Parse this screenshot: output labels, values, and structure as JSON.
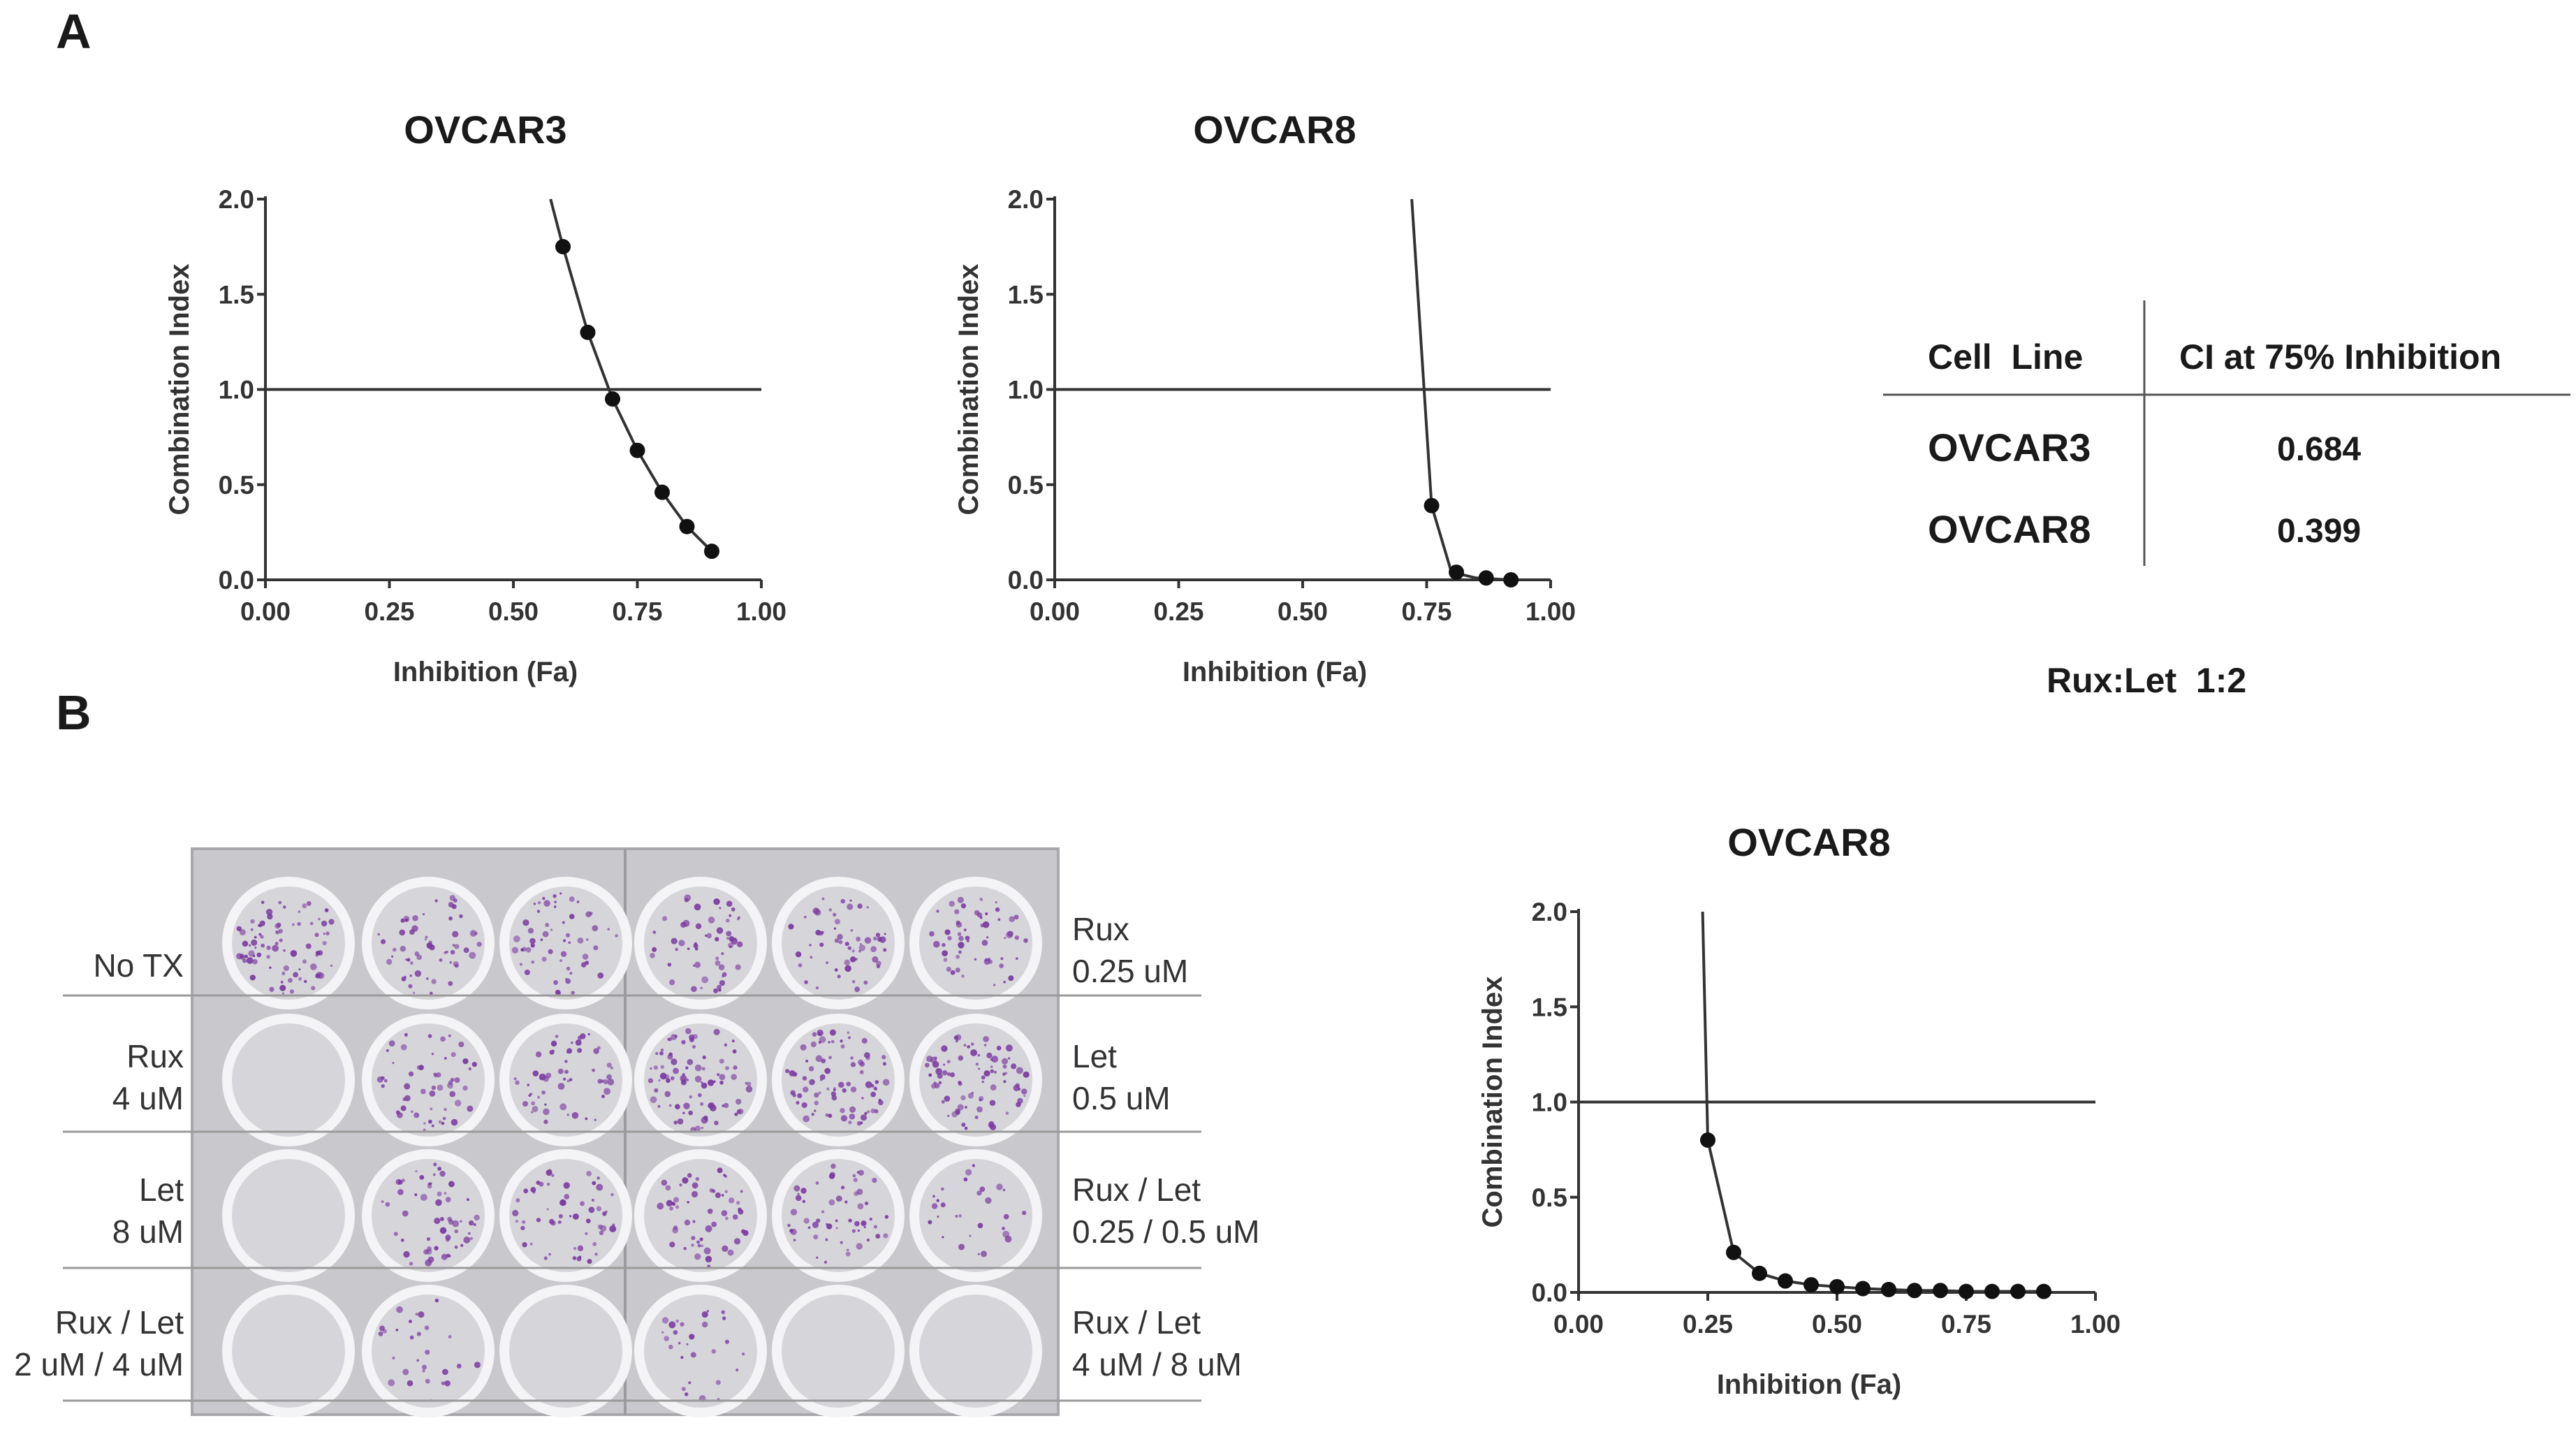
{
  "panels": {
    "a_label": "A",
    "b_label": "B"
  },
  "colors": {
    "line": "#333333",
    "marker": "#111111",
    "axis": "#333333",
    "plate_bg": "#c9c8cc",
    "well_bg": "#d6d5da",
    "well_rim": "#f4f4f6",
    "colony": "#7a3aa0"
  },
  "chart_data": [
    {
      "id": "a_ovcar3",
      "type": "line",
      "title": "OVCAR3",
      "xlabel": "Inhibition (Fa)",
      "ylabel": "Combination Index",
      "xlim": [
        0,
        1
      ],
      "ylim": [
        0,
        2
      ],
      "xticks": [
        "0.00",
        "0.25",
        "0.50",
        "0.75",
        "1.00"
      ],
      "yticks": [
        "0.0",
        "0.5",
        "1.0",
        "1.5",
        "2.0"
      ],
      "reference_line_y": 1.0,
      "curve": {
        "x": [
          0.575,
          0.6,
          0.65,
          0.7,
          0.75,
          0.8,
          0.85,
          0.9
        ],
        "y": [
          2.0,
          1.75,
          1.3,
          0.95,
          0.68,
          0.46,
          0.28,
          0.15
        ]
      },
      "points": {
        "x": [
          0.6,
          0.65,
          0.7,
          0.75,
          0.8,
          0.85,
          0.9
        ],
        "y": [
          1.75,
          1.3,
          0.95,
          0.68,
          0.46,
          0.28,
          0.15
        ]
      }
    },
    {
      "id": "a_ovcar8",
      "type": "line",
      "title": "OVCAR8",
      "xlabel": "Inhibition (Fa)",
      "ylabel": "Combination Index",
      "xlim": [
        0,
        1
      ],
      "ylim": [
        0,
        2
      ],
      "xticks": [
        "0.00",
        "0.25",
        "0.50",
        "0.75",
        "1.00"
      ],
      "yticks": [
        "0.0",
        "0.5",
        "1.0",
        "1.5",
        "2.0"
      ],
      "reference_line_y": 1.0,
      "curve": {
        "x": [
          0.72,
          0.76,
          0.8,
          0.85,
          0.92
        ],
        "y": [
          2.0,
          0.39,
          0.04,
          0.01,
          0.0
        ]
      },
      "points": {
        "x": [
          0.76,
          0.81,
          0.87,
          0.92
        ],
        "y": [
          0.39,
          0.04,
          0.01,
          0.0
        ]
      }
    },
    {
      "id": "b_ovcar8",
      "type": "line",
      "title": "OVCAR8",
      "xlabel": "Inhibition (Fa)",
      "ylabel": "Combination Index",
      "xlim": [
        0,
        1
      ],
      "ylim": [
        0,
        2
      ],
      "xticks": [
        "0.00",
        "0.25",
        "0.50",
        "0.75",
        "1.00"
      ],
      "yticks": [
        "0.0",
        "0.5",
        "1.0",
        "1.5",
        "2.0"
      ],
      "reference_line_y": 1.0,
      "curve": {
        "x": [
          0.24,
          0.25,
          0.3,
          0.35,
          0.4,
          0.45,
          0.5,
          0.55,
          0.6,
          0.65,
          0.7,
          0.75,
          0.8,
          0.85,
          0.9
        ],
        "y": [
          2.0,
          0.8,
          0.21,
          0.1,
          0.06,
          0.04,
          0.03,
          0.02,
          0.015,
          0.01,
          0.01,
          0.005,
          0.005,
          0.005,
          0.005
        ]
      },
      "points": {
        "x": [
          0.25,
          0.3,
          0.35,
          0.4,
          0.45,
          0.5,
          0.55,
          0.6,
          0.65,
          0.7,
          0.75,
          0.8,
          0.85,
          0.9
        ],
        "y": [
          0.8,
          0.21,
          0.1,
          0.06,
          0.04,
          0.03,
          0.02,
          0.015,
          0.01,
          0.01,
          0.005,
          0.005,
          0.005,
          0.005
        ]
      }
    }
  ],
  "ci_table": {
    "headers": [
      "Cell  Line",
      "CI at 75% Inhibition"
    ],
    "rows": [
      {
        "cell_line": "OVCAR3",
        "ci": "0.684"
      },
      {
        "cell_line": "OVCAR8",
        "ci": "0.399"
      }
    ],
    "ratio_note": "Rux:Let  1:2"
  },
  "plate": {
    "rows": [
      {
        "left": [
          "No TX"
        ],
        "right": [
          "Rux",
          "0.25 uM"
        ]
      },
      {
        "left": [
          "Rux",
          "4 uM"
        ],
        "right": [
          "Let",
          "0.5 uM"
        ]
      },
      {
        "left": [
          "Let",
          "8 uM"
        ],
        "right": [
          "Rux / Let",
          "0.25 / 0.5 uM"
        ]
      },
      {
        "left": [
          "Rux / Let",
          "2 uM / 4 uM"
        ],
        "right": [
          "Rux / Let",
          "4 uM / 8 uM"
        ]
      }
    ],
    "colony_density": [
      [
        3,
        2,
        2,
        2,
        2,
        2
      ],
      [
        0,
        2,
        2,
        3,
        3,
        3
      ],
      [
        0,
        2,
        2,
        2,
        2,
        1
      ],
      [
        0,
        1,
        0,
        1,
        0,
        0
      ]
    ]
  }
}
